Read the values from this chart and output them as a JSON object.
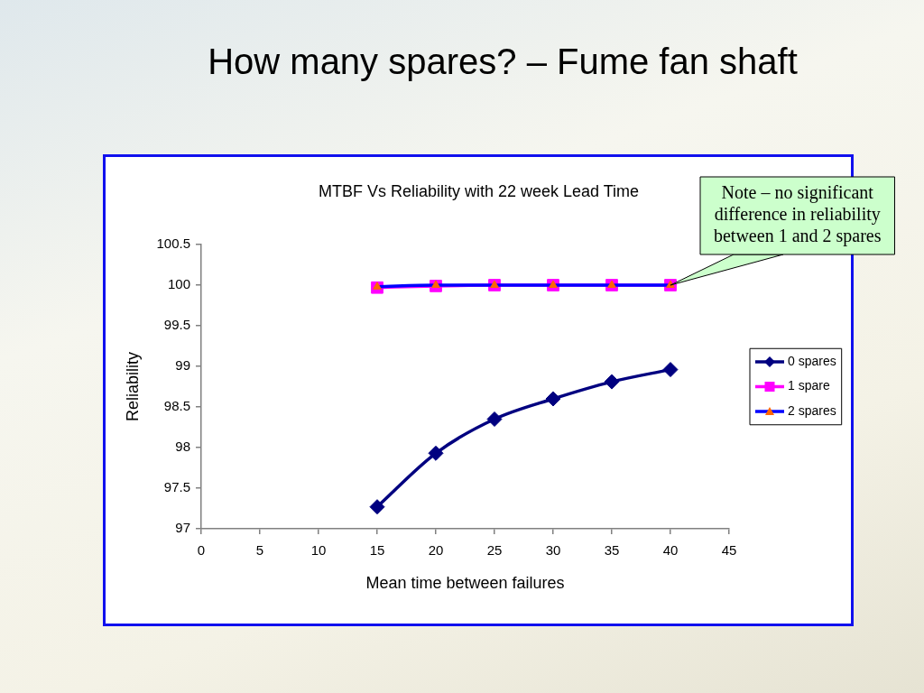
{
  "chart_data": {
    "type": "line",
    "title": "How many spares? – Fume fan shaft",
    "subtitle": "MTBF Vs Reliability with 22 week Lead Time",
    "xlabel": "Mean time between failures",
    "ylabel": "Reliability",
    "x": [
      15,
      20,
      25,
      30,
      35,
      40
    ],
    "series": [
      {
        "name": "0 spares",
        "color": "#000080",
        "marker": "diamond",
        "values": [
          97.27,
          97.93,
          98.35,
          98.6,
          98.81,
          98.96
        ]
      },
      {
        "name": "1 spare",
        "color": "#ff00ff",
        "marker": "square",
        "values": [
          99.97,
          99.99,
          100,
          100,
          100,
          100
        ]
      },
      {
        "name": "2 spares",
        "color": "#0000ff",
        "colors": [
          "#ff6600",
          "#ff6600",
          "#ff6600",
          "#ff6600",
          "#ff6600",
          "#ff6600"
        ],
        "marker": "triangle",
        "values": [
          99.98,
          100,
          100,
          100,
          100,
          100
        ]
      }
    ],
    "xlim": [
      0,
      45
    ],
    "xticks": [
      0,
      5,
      10,
      15,
      20,
      25,
      30,
      35,
      40,
      45
    ],
    "ylim": [
      97,
      100.5
    ],
    "yticks": [
      97,
      97.5,
      98,
      98.5,
      99,
      99.5,
      100,
      100.5
    ],
    "grid": false,
    "legend": "right",
    "line_style": "solid",
    "annotations": [
      {
        "text": "Note – no significant difference in reliability between 1 and 2 spares",
        "x": 40,
        "y": 100
      }
    ]
  }
}
